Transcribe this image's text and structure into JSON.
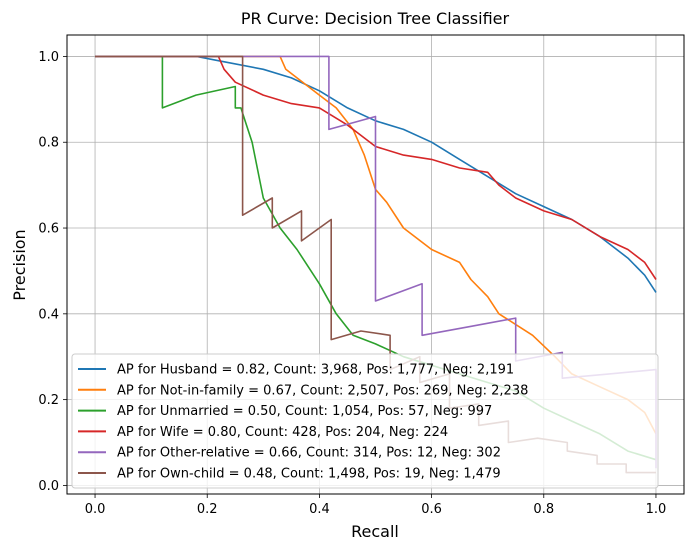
{
  "chart_data": {
    "type": "line",
    "title": "PR Curve: Decision Tree Classifier",
    "xlabel": "Recall",
    "ylabel": "Precision",
    "xlim": [
      -0.05,
      1.05
    ],
    "ylim": [
      -0.02,
      1.05
    ],
    "xticks": [
      0.0,
      0.2,
      0.4,
      0.6,
      0.8,
      1.0
    ],
    "xtick_labels": [
      "0.0",
      "0.2",
      "0.4",
      "0.6",
      "0.8",
      "1.0"
    ],
    "yticks": [
      0.0,
      0.2,
      0.4,
      0.6,
      0.8,
      1.0
    ],
    "ytick_labels": [
      "0.0",
      "0.2",
      "0.4",
      "0.6",
      "0.8",
      "1.0"
    ],
    "grid": true,
    "legend_position": "lower-left",
    "series": [
      {
        "name": "AP for Husband = 0.82, Count: 3,968, Pos: 1,777, Neg: 2,191",
        "color": "#1f77b4",
        "points": [
          [
            0.0,
            1.0
          ],
          [
            0.18,
            1.0
          ],
          [
            0.22,
            0.99
          ],
          [
            0.3,
            0.97
          ],
          [
            0.35,
            0.95
          ],
          [
            0.4,
            0.92
          ],
          [
            0.45,
            0.88
          ],
          [
            0.5,
            0.85
          ],
          [
            0.55,
            0.83
          ],
          [
            0.6,
            0.8
          ],
          [
            0.65,
            0.76
          ],
          [
            0.7,
            0.72
          ],
          [
            0.75,
            0.68
          ],
          [
            0.8,
            0.65
          ],
          [
            0.85,
            0.62
          ],
          [
            0.9,
            0.58
          ],
          [
            0.95,
            0.53
          ],
          [
            0.98,
            0.49
          ],
          [
            1.0,
            0.45
          ]
        ]
      },
      {
        "name": "AP for Not-in-family = 0.67, Count: 2,507, Pos: 269, Neg: 2,238",
        "color": "#ff7f0e",
        "points": [
          [
            0.0,
            1.0
          ],
          [
            0.33,
            1.0
          ],
          [
            0.34,
            0.97
          ],
          [
            0.36,
            0.95
          ],
          [
            0.4,
            0.91
          ],
          [
            0.43,
            0.88
          ],
          [
            0.46,
            0.83
          ],
          [
            0.48,
            0.77
          ],
          [
            0.5,
            0.69
          ],
          [
            0.52,
            0.66
          ],
          [
            0.55,
            0.6
          ],
          [
            0.6,
            0.55
          ],
          [
            0.65,
            0.52
          ],
          [
            0.67,
            0.48
          ],
          [
            0.7,
            0.44
          ],
          [
            0.72,
            0.4
          ],
          [
            0.78,
            0.35
          ],
          [
            0.82,
            0.3
          ],
          [
            0.85,
            0.26
          ],
          [
            0.9,
            0.23
          ],
          [
            0.95,
            0.2
          ],
          [
            0.98,
            0.17
          ],
          [
            1.0,
            0.12
          ]
        ]
      },
      {
        "name": "AP for Unmarried = 0.50, Count: 1,054, Pos: 57, Neg: 997",
        "color": "#2ca02c",
        "points": [
          [
            0.0,
            1.0
          ],
          [
            0.12,
            1.0
          ],
          [
            0.12,
            0.88
          ],
          [
            0.18,
            0.91
          ],
          [
            0.25,
            0.93
          ],
          [
            0.25,
            0.88
          ],
          [
            0.26,
            0.88
          ],
          [
            0.27,
            0.84
          ],
          [
            0.28,
            0.8
          ],
          [
            0.3,
            0.67
          ],
          [
            0.33,
            0.6
          ],
          [
            0.36,
            0.55
          ],
          [
            0.4,
            0.47
          ],
          [
            0.43,
            0.4
          ],
          [
            0.46,
            0.35
          ],
          [
            0.5,
            0.33
          ],
          [
            0.55,
            0.3
          ],
          [
            0.6,
            0.28
          ],
          [
            0.65,
            0.26
          ],
          [
            0.7,
            0.24
          ],
          [
            0.75,
            0.22
          ],
          [
            0.8,
            0.18
          ],
          [
            0.85,
            0.15
          ],
          [
            0.9,
            0.12
          ],
          [
            0.95,
            0.08
          ],
          [
            1.0,
            0.06
          ]
        ]
      },
      {
        "name": "AP for Wife = 0.80, Count: 428, Pos: 204, Neg: 224",
        "color": "#d62728",
        "points": [
          [
            0.0,
            1.0
          ],
          [
            0.22,
            1.0
          ],
          [
            0.23,
            0.97
          ],
          [
            0.25,
            0.94
          ],
          [
            0.3,
            0.91
          ],
          [
            0.35,
            0.89
          ],
          [
            0.4,
            0.88
          ],
          [
            0.45,
            0.84
          ],
          [
            0.5,
            0.79
          ],
          [
            0.55,
            0.77
          ],
          [
            0.6,
            0.76
          ],
          [
            0.65,
            0.74
          ],
          [
            0.7,
            0.73
          ],
          [
            0.72,
            0.7
          ],
          [
            0.75,
            0.67
          ],
          [
            0.8,
            0.64
          ],
          [
            0.85,
            0.62
          ],
          [
            0.9,
            0.58
          ],
          [
            0.95,
            0.55
          ],
          [
            0.98,
            0.52
          ],
          [
            1.0,
            0.48
          ]
        ]
      },
      {
        "name": "AP for Other-relative = 0.66, Count: 314, Pos: 12, Neg: 302",
        "color": "#9467bd",
        "points": [
          [
            0.0,
            1.0
          ],
          [
            0.417,
            1.0
          ],
          [
            0.417,
            0.83
          ],
          [
            0.5,
            0.86
          ],
          [
            0.5,
            0.43
          ],
          [
            0.583,
            0.47
          ],
          [
            0.583,
            0.35
          ],
          [
            0.667,
            0.37
          ],
          [
            0.75,
            0.39
          ],
          [
            0.75,
            0.29
          ],
          [
            0.833,
            0.31
          ],
          [
            0.833,
            0.25
          ],
          [
            0.917,
            0.26
          ],
          [
            1.0,
            0.27
          ],
          [
            1.0,
            0.04
          ]
        ]
      },
      {
        "name": "AP for Own-child = 0.48, Count: 1,498, Pos: 19, Neg: 1,479",
        "color": "#8c564b",
        "points": [
          [
            0.0,
            1.0
          ],
          [
            0.263,
            1.0
          ],
          [
            0.263,
            0.63
          ],
          [
            0.316,
            0.67
          ],
          [
            0.316,
            0.6
          ],
          [
            0.368,
            0.64
          ],
          [
            0.368,
            0.57
          ],
          [
            0.421,
            0.62
          ],
          [
            0.421,
            0.34
          ],
          [
            0.474,
            0.36
          ],
          [
            0.526,
            0.35
          ],
          [
            0.526,
            0.27
          ],
          [
            0.579,
            0.3
          ],
          [
            0.579,
            0.24
          ],
          [
            0.632,
            0.26
          ],
          [
            0.632,
            0.18
          ],
          [
            0.684,
            0.19
          ],
          [
            0.684,
            0.14
          ],
          [
            0.737,
            0.15
          ],
          [
            0.737,
            0.1
          ],
          [
            0.789,
            0.11
          ],
          [
            0.842,
            0.1
          ],
          [
            0.842,
            0.08
          ],
          [
            0.895,
            0.07
          ],
          [
            0.895,
            0.05
          ],
          [
            0.947,
            0.05
          ],
          [
            0.947,
            0.03
          ],
          [
            1.0,
            0.03
          ]
        ]
      }
    ]
  }
}
